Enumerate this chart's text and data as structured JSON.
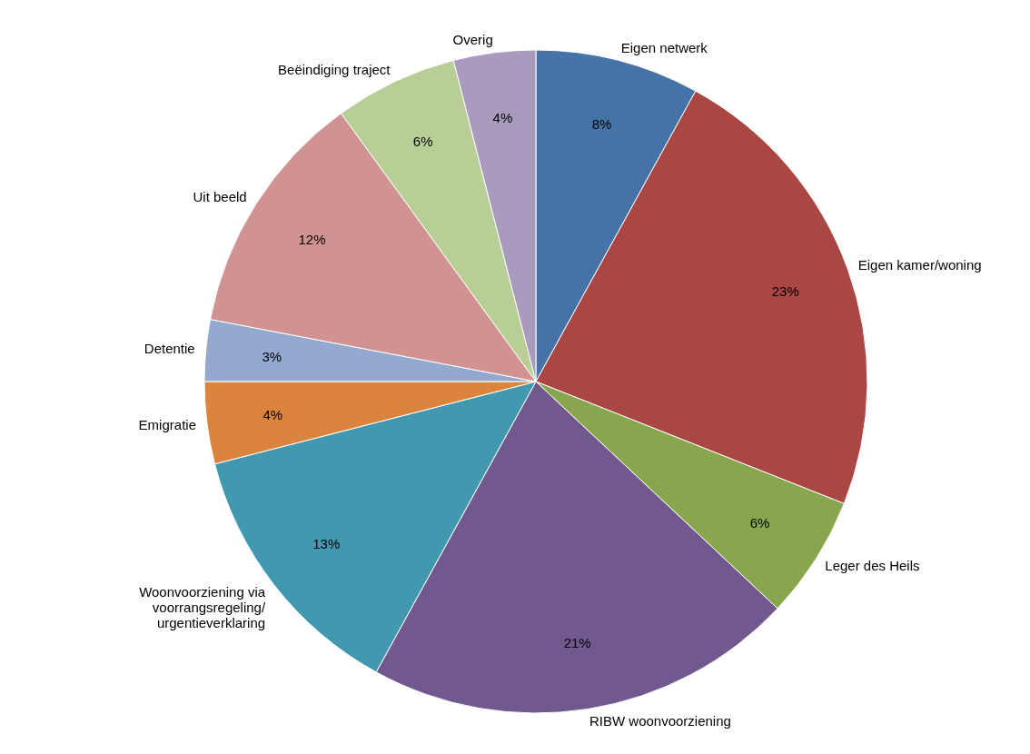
{
  "chart_data": {
    "type": "pie",
    "categories": [
      "Eigen netwerk",
      "Eigen kamer/woning",
      "Leger des Heils",
      "RIBW woonvoorziening",
      "Woonvoorziening via\nvoorrangsregeling/\nurgentieverklaring",
      "Emigratie",
      "Detentie",
      "Uit beeld",
      "Beëindiging traject",
      "Overig"
    ],
    "values": [
      8,
      23,
      6,
      21,
      13,
      4,
      3,
      12,
      6,
      4
    ],
    "colors": [
      "#4572a7",
      "#aa4643",
      "#89a54e",
      "#71588f",
      "#4198af",
      "#db843d",
      "#93a9cf",
      "#d19392",
      "#b9cd96",
      "#a99bbd"
    ],
    "value_labels": [
      "8%",
      "23%",
      "6%",
      "21%",
      "13%",
      "4%",
      "3%",
      "12%",
      "6%",
      "4%"
    ]
  }
}
